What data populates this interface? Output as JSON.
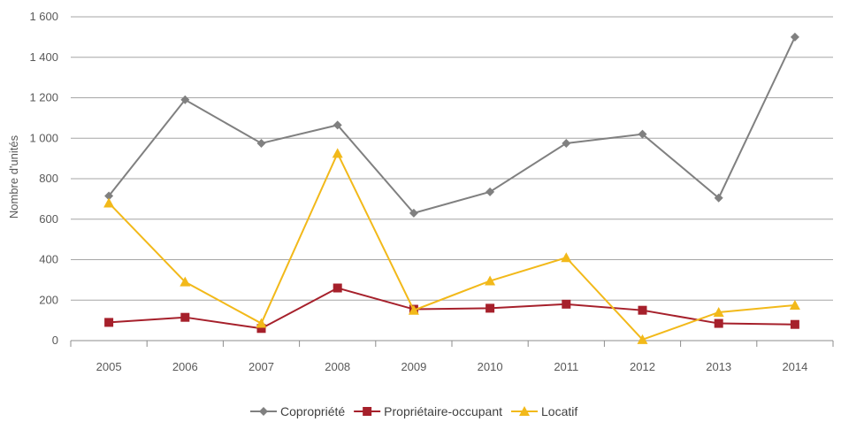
{
  "chart_data": {
    "type": "line",
    "categories": [
      "2005",
      "2006",
      "2007",
      "2008",
      "2009",
      "2010",
      "2011",
      "2012",
      "2013",
      "2014"
    ],
    "ylabel": "Nombre d'unités",
    "ylim": [
      0,
      1600
    ],
    "yticks": [
      0,
      200,
      400,
      600,
      800,
      1000,
      1200,
      1400,
      1600
    ],
    "ytick_labels": [
      "0",
      "200",
      "400",
      "600",
      "800",
      "1 000",
      "1 200",
      "1 400",
      "1 600"
    ],
    "grid": true,
    "legend_position": "bottom",
    "series": [
      {
        "name": "Copropriété",
        "color": "#808080",
        "marker": "diamond",
        "values": [
          715,
          1190,
          975,
          1065,
          630,
          735,
          975,
          1020,
          705,
          1500
        ]
      },
      {
        "name": "Propriétaire-occupant",
        "color": "#a6202b",
        "marker": "square",
        "values": [
          90,
          115,
          60,
          260,
          155,
          160,
          180,
          150,
          85,
          80
        ]
      },
      {
        "name": "Locatif",
        "color": "#f2b91a",
        "marker": "triangle",
        "values": [
          680,
          290,
          85,
          925,
          150,
          295,
          410,
          5,
          140,
          175
        ]
      }
    ]
  }
}
